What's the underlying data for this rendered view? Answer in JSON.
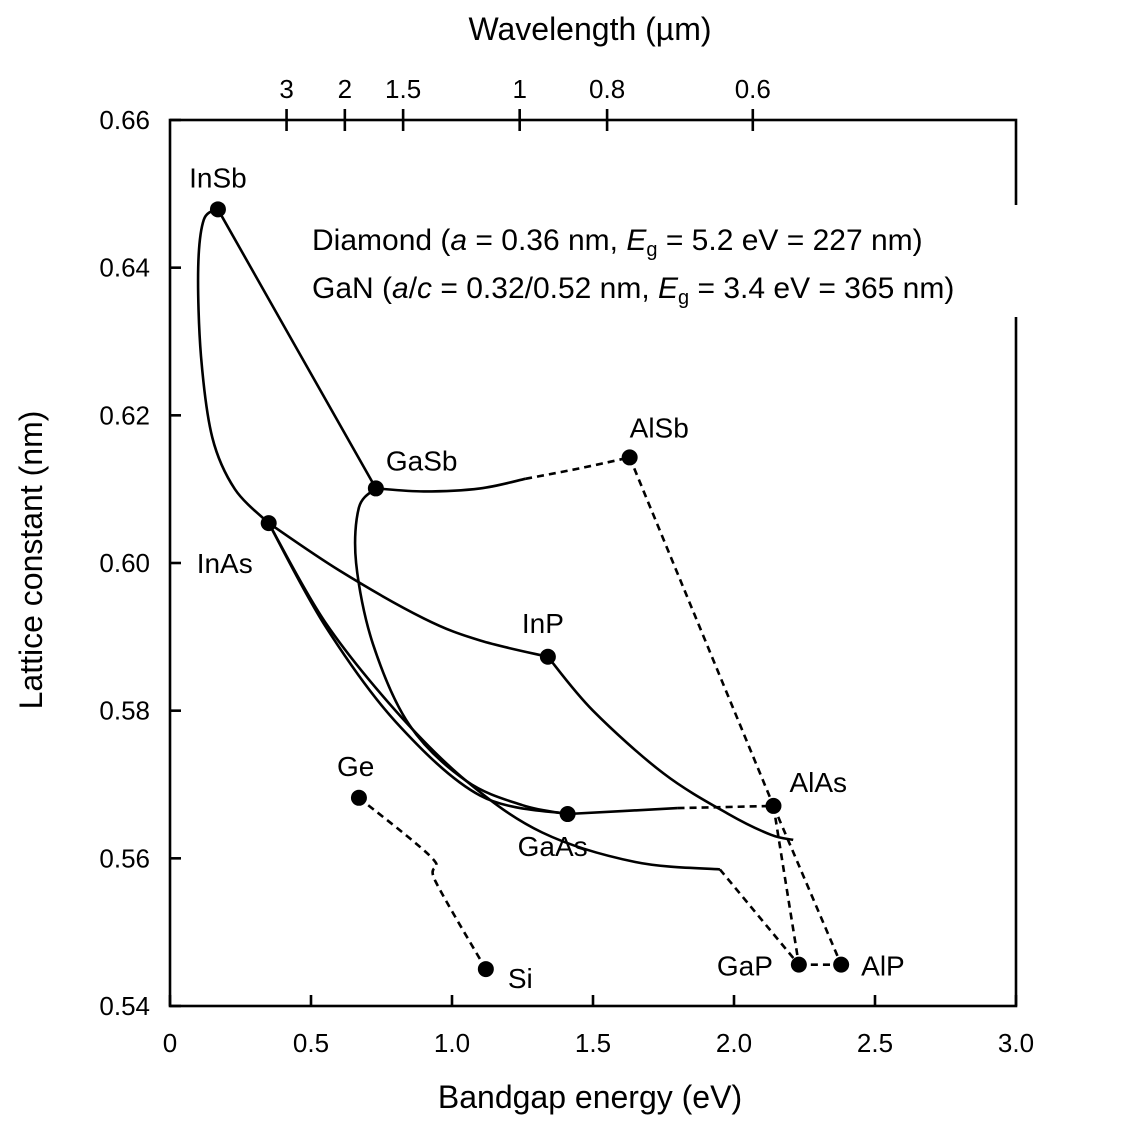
{
  "chart_data": {
    "type": "scatter",
    "title": "",
    "xlabel": "Bandgap energy (eV)",
    "ylabel": "Lattice constant (nm)",
    "x2label": "Wavelength (µm)",
    "xlim": [
      0,
      3.0
    ],
    "ylim": [
      0.54,
      0.66
    ],
    "x_ticks": [
      "0",
      "0.5",
      "1.0",
      "1.5",
      "2.0",
      "2.5",
      "3.0"
    ],
    "y_ticks": [
      "0.54",
      "0.56",
      "0.58",
      "0.60",
      "0.62",
      "0.64",
      "0.66"
    ],
    "x2_ticks": [
      {
        "label": "3",
        "value": 3
      },
      {
        "label": "2",
        "value": 2
      },
      {
        "label": "1.5",
        "value": 1.5
      },
      {
        "label": "1",
        "value": 1
      },
      {
        "label": "0.8",
        "value": 0.8
      },
      {
        "label": "0.6",
        "value": 0.6
      }
    ],
    "points": [
      {
        "name": "InSb",
        "x": 0.17,
        "y": 0.6479
      },
      {
        "name": "GaSb",
        "x": 0.73,
        "y": 0.6101
      },
      {
        "name": "AlSb",
        "x": 1.63,
        "y": 0.6143
      },
      {
        "name": "InAs",
        "x": 0.35,
        "y": 0.6054
      },
      {
        "name": "InP",
        "x": 1.34,
        "y": 0.5873
      },
      {
        "name": "AlAs",
        "x": 2.14,
        "y": 0.5671
      },
      {
        "name": "GaAs",
        "x": 1.41,
        "y": 0.566
      },
      {
        "name": "Ge",
        "x": 0.67,
        "y": 0.5682
      },
      {
        "name": "Si",
        "x": 1.12,
        "y": 0.545
      },
      {
        "name": "GaP",
        "x": 2.23,
        "y": 0.5456
      },
      {
        "name": "AlP",
        "x": 2.38,
        "y": 0.5456
      }
    ],
    "curves": [
      {
        "style": "solid",
        "points": [
          [
            0.17,
            0.6479
          ],
          [
            0.73,
            0.6101
          ]
        ]
      },
      {
        "style": "solid",
        "points": [
          [
            0.17,
            0.6479
          ],
          [
            0.12,
            0.6465
          ],
          [
            0.1,
            0.64
          ],
          [
            0.11,
            0.628
          ],
          [
            0.15,
            0.617
          ],
          [
            0.23,
            0.61
          ],
          [
            0.35,
            0.6054
          ]
        ]
      },
      {
        "style": "solid",
        "points": [
          [
            0.73,
            0.6101
          ],
          [
            0.9,
            0.6097
          ],
          [
            1.1,
            0.6101
          ],
          [
            1.26,
            0.6114
          ]
        ]
      },
      {
        "style": "dashed",
        "points": [
          [
            1.26,
            0.6114
          ],
          [
            1.45,
            0.6128
          ],
          [
            1.63,
            0.6143
          ]
        ]
      },
      {
        "style": "solid",
        "points": [
          [
            0.73,
            0.6101
          ],
          [
            0.67,
            0.6075
          ],
          [
            0.66,
            0.6
          ],
          [
            0.72,
            0.589
          ],
          [
            0.85,
            0.578
          ],
          [
            1.05,
            0.5705
          ],
          [
            1.25,
            0.5672
          ],
          [
            1.41,
            0.566
          ]
        ]
      },
      {
        "style": "solid",
        "points": [
          [
            0.35,
            0.6054
          ],
          [
            0.6,
            0.599
          ],
          [
            0.9,
            0.5925
          ],
          [
            1.1,
            0.5895
          ],
          [
            1.34,
            0.5873
          ]
        ]
      },
      {
        "style": "solid",
        "points": [
          [
            0.35,
            0.6054
          ],
          [
            0.55,
            0.5915
          ],
          [
            0.8,
            0.5785
          ],
          [
            1.1,
            0.5685
          ],
          [
            1.41,
            0.566
          ]
        ]
      },
      {
        "style": "solid",
        "points": [
          [
            1.34,
            0.5873
          ],
          [
            1.5,
            0.58
          ],
          [
            1.75,
            0.5715
          ],
          [
            1.98,
            0.566
          ],
          [
            2.13,
            0.5632
          ],
          [
            2.21,
            0.5625
          ]
        ]
      },
      {
        "style": "solid",
        "points": [
          [
            1.41,
            0.566
          ],
          [
            1.8,
            0.5668
          ]
        ]
      },
      {
        "style": "dashed",
        "points": [
          [
            1.8,
            0.5668
          ],
          [
            2.14,
            0.5671
          ]
        ]
      },
      {
        "style": "solid",
        "points": [
          [
            0.35,
            0.6054
          ],
          [
            0.55,
            0.592
          ],
          [
            0.8,
            0.58
          ],
          [
            1.05,
            0.5705
          ],
          [
            1.32,
            0.5635
          ],
          [
            1.65,
            0.5595
          ],
          [
            1.95,
            0.5585
          ]
        ]
      },
      {
        "style": "dashed",
        "points": [
          [
            1.95,
            0.5585
          ],
          [
            2.23,
            0.5456
          ]
        ]
      },
      {
        "style": "dashed",
        "points": [
          [
            1.63,
            0.6143
          ],
          [
            2.14,
            0.5671
          ]
        ]
      },
      {
        "style": "dashed",
        "points": [
          [
            2.14,
            0.5671
          ],
          [
            2.23,
            0.5456
          ]
        ]
      },
      {
        "style": "dashed",
        "points": [
          [
            2.14,
            0.5671
          ],
          [
            2.38,
            0.5456
          ]
        ]
      },
      {
        "style": "dashed",
        "points": [
          [
            2.23,
            0.5456
          ],
          [
            2.38,
            0.5456
          ]
        ]
      },
      {
        "style": "dashed",
        "points": [
          [
            0.67,
            0.5682
          ],
          [
            0.93,
            0.56
          ],
          [
            0.94,
            0.557
          ],
          [
            1.12,
            0.545
          ]
        ]
      }
    ],
    "annotations": [
      {
        "id": "diamond",
        "prefix": "Diamond (",
        "var1": "a",
        "mid1": " = 0.36 nm, ",
        "eg": "E",
        "eg_sub": "g",
        "tail": " = 5.2 eV = 227 nm)"
      },
      {
        "id": "gan",
        "prefix": "GaN (",
        "var1": "a",
        "slash": "/",
        "var2": "c",
        "mid1": " = 0.32/0.52 nm, ",
        "eg": "E",
        "eg_sub": "g",
        "tail": " = 3.4 eV = 365 nm)"
      }
    ],
    "grid": false,
    "legend": "none"
  }
}
